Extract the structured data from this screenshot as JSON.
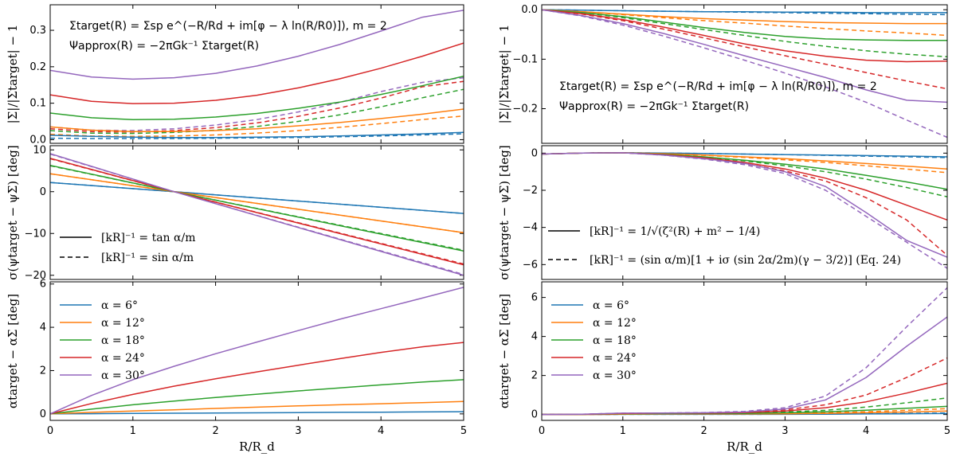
{
  "chart_data": {
    "type": "line",
    "xlabel": "R/R_d",
    "xlim": [
      0,
      5
    ],
    "xticks": [
      0,
      1,
      2,
      3,
      4,
      5
    ],
    "series_names": [
      "α = 6°",
      "α = 12°",
      "α = 18°",
      "α = 24°",
      "α = 30°"
    ],
    "colors": [
      "#1f77b4",
      "#ff7f0e",
      "#2ca02c",
      "#d62728",
      "#9467bd"
    ],
    "columns": [
      {
        "annotation": {
          "line1": "Σtarget(R) = Σsp e^(−R/Rd + im[φ − λ ln(R/R0)]),  m = 2",
          "line2": "Ψapprox(R) = −2πGk⁻¹ Σtarget(R)"
        },
        "style_legend": {
          "solid": "[kR]⁻¹ = tan α/m",
          "dashed": "[kR]⁻¹ = sin α/m"
        },
        "panels": [
          {
            "ylabel": "|Σ|/|Σtarget| − 1",
            "ylim": [
              -0.01,
              0.37
            ],
            "yticks": [
              "0.0",
              "0.1",
              "0.2",
              "0.3"
            ],
            "ytick_values": [
              0,
              0.1,
              0.2,
              0.3
            ],
            "x": [
              0,
              0.5,
              1,
              1.5,
              2,
              2.5,
              3,
              3.5,
              4,
              4.5,
              5
            ],
            "solid": [
              [
                0.012,
                0.009,
                0.007,
                0.006,
                0.006,
                0.007,
                0.008,
                0.01,
                0.013,
                0.016,
                0.02
              ],
              [
                0.035,
                0.026,
                0.022,
                0.022,
                0.025,
                0.03,
                0.038,
                0.047,
                0.058,
                0.07,
                0.084
              ],
              [
                0.073,
                0.06,
                0.055,
                0.056,
                0.062,
                0.072,
                0.086,
                0.103,
                0.124,
                0.148,
                0.174
              ],
              [
                0.123,
                0.105,
                0.099,
                0.1,
                0.108,
                0.122,
                0.142,
                0.167,
                0.196,
                0.229,
                0.265
              ],
              [
                0.19,
                0.172,
                0.166,
                0.17,
                0.182,
                0.202,
                0.229,
                0.261,
                0.298,
                0.336,
                0.355
              ]
            ],
            "dashed": [
              [
                0.004,
                0.003,
                0.003,
                0.003,
                0.004,
                0.005,
                0.006,
                0.008,
                0.01,
                0.013,
                0.016
              ],
              [
                0.015,
                0.01,
                0.009,
                0.01,
                0.013,
                0.018,
                0.025,
                0.034,
                0.044,
                0.055,
                0.065
              ],
              [
                0.025,
                0.018,
                0.017,
                0.02,
                0.026,
                0.036,
                0.05,
                0.068,
                0.09,
                0.115,
                0.138
              ],
              [
                0.03,
                0.022,
                0.021,
                0.025,
                0.033,
                0.046,
                0.064,
                0.087,
                0.114,
                0.145,
                0.16
              ],
              [
                0.035,
                0.026,
                0.025,
                0.03,
                0.04,
                0.055,
                0.076,
                0.102,
                0.132,
                0.157,
                0.17
              ]
            ]
          },
          {
            "ylabel": "σ(ψtarget − ψΣ) [deg]",
            "ylim": [
              -21,
              11
            ],
            "yticks": [
              "−20",
              "−10",
              "0",
              "10"
            ],
            "ytick_values": [
              -20,
              -10,
              0,
              10
            ],
            "x": [
              0,
              1.5,
              5
            ],
            "solid": [
              [
                2.2,
                0.0,
                -5.2
              ],
              [
                4.3,
                0.0,
                -9.8
              ],
              [
                6.3,
                0.0,
                -14.2
              ],
              [
                8.0,
                0.0,
                -17.5
              ],
              [
                9.1,
                0.0,
                -20.0
              ]
            ],
            "dashed": [
              [
                2.2,
                0.0,
                -5.2
              ],
              [
                4.3,
                0.0,
                -9.8
              ],
              [
                6.2,
                0.0,
                -14.0
              ],
              [
                7.9,
                0.0,
                -17.3
              ],
              [
                9.0,
                0.0,
                -19.8
              ]
            ]
          },
          {
            "ylabel": "αtarget − αΣ [deg]",
            "ylim": [
              -0.3,
              6.1
            ],
            "yticks": [
              "0",
              "2",
              "4",
              "6"
            ],
            "ytick_values": [
              0,
              2,
              4,
              6
            ],
            "x": [
              0,
              0.5,
              1,
              1.5,
              2,
              2.5,
              3,
              3.5,
              4,
              4.5,
              5
            ],
            "solid": [
              [
                0.0,
                0.01,
                0.02,
                0.03,
                0.04,
                0.05,
                0.06,
                0.07,
                0.08,
                0.09,
                0.1
              ],
              [
                0.0,
                0.07,
                0.13,
                0.19,
                0.25,
                0.31,
                0.37,
                0.42,
                0.47,
                0.52,
                0.57
              ],
              [
                0.0,
                0.22,
                0.42,
                0.59,
                0.76,
                0.91,
                1.06,
                1.2,
                1.34,
                1.47,
                1.58
              ],
              [
                0.0,
                0.48,
                0.9,
                1.28,
                1.62,
                1.94,
                2.25,
                2.55,
                2.84,
                3.1,
                3.3
              ],
              [
                0.0,
                0.85,
                1.58,
                2.2,
                2.78,
                3.32,
                3.85,
                4.37,
                4.86,
                5.35,
                5.85
              ]
            ]
          }
        ]
      },
      {
        "annotation": {
          "line1": "Σtarget(R) = Σsp e^(−R/Rd + im[φ − λ ln(R/R0)]),  m = 2",
          "line2": "Ψapprox(R) = −2πGk⁻¹ Σtarget(R)"
        },
        "style_legend": {
          "solid": "[kR]⁻¹ = 1/√(ζ²(R) + m² − 1/4)",
          "dashed": "[kR]⁻¹ = (sin α/m)[1 + iσ (sin 2α/2m)(γ − 3/2)] (Eq. 24)"
        },
        "panels": [
          {
            "ylabel": "|Σ|/|Σtarget| − 1",
            "ylim": [
              -0.27,
              0.01
            ],
            "yticks": [
              "0.0",
              "−0.1",
              "−0.2"
            ],
            "ytick_values": [
              0,
              -0.1,
              -0.2
            ],
            "x": [
              0,
              0.5,
              1,
              1.5,
              2,
              2.5,
              3,
              3.5,
              4,
              4.5,
              5
            ],
            "solid": [
              [
                0.0,
                -0.001,
                -0.002,
                -0.003,
                -0.004,
                -0.004,
                -0.005,
                -0.005,
                -0.006,
                -0.006,
                -0.006
              ],
              [
                0.0,
                -0.004,
                -0.009,
                -0.014,
                -0.018,
                -0.021,
                -0.024,
                -0.026,
                -0.027,
                -0.028,
                -0.028
              ],
              [
                0.0,
                -0.006,
                -0.014,
                -0.025,
                -0.036,
                -0.046,
                -0.054,
                -0.059,
                -0.061,
                -0.062,
                -0.062
              ],
              [
                0.0,
                -0.008,
                -0.02,
                -0.035,
                -0.052,
                -0.069,
                -0.083,
                -0.094,
                -0.102,
                -0.105,
                -0.104
              ],
              [
                0.0,
                -0.012,
                -0.028,
                -0.048,
                -0.07,
                -0.093,
                -0.115,
                -0.137,
                -0.162,
                -0.183,
                -0.187
              ]
            ],
            "dashed": [
              [
                0.0,
                -0.001,
                -0.002,
                -0.003,
                -0.004,
                -0.005,
                -0.006,
                -0.007,
                -0.008,
                -0.009,
                -0.01
              ],
              [
                0.0,
                -0.004,
                -0.01,
                -0.016,
                -0.022,
                -0.027,
                -0.033,
                -0.038,
                -0.043,
                -0.047,
                -0.052
              ],
              [
                0.0,
                -0.006,
                -0.016,
                -0.028,
                -0.04,
                -0.052,
                -0.064,
                -0.074,
                -0.083,
                -0.09,
                -0.095
              ],
              [
                0.0,
                -0.009,
                -0.022,
                -0.039,
                -0.057,
                -0.075,
                -0.093,
                -0.11,
                -0.127,
                -0.144,
                -0.16
              ],
              [
                0.0,
                -0.013,
                -0.031,
                -0.053,
                -0.077,
                -0.102,
                -0.128,
                -0.156,
                -0.187,
                -0.223,
                -0.258
              ]
            ]
          },
          {
            "ylabel": "σ(ψtarget − ψΣ) [deg]",
            "ylim": [
              -6.8,
              0.4
            ],
            "yticks": [
              "0",
              "−2",
              "−4",
              "−6"
            ],
            "ytick_values": [
              0,
              -2,
              -4,
              -6
            ],
            "x": [
              0,
              0.5,
              1,
              1.5,
              2,
              2.5,
              3,
              3.5,
              4,
              4.5,
              5
            ],
            "solid": [
              [
                -0.05,
                0.0,
                0.02,
                0.0,
                -0.02,
                -0.05,
                -0.08,
                -0.1,
                -0.13,
                -0.16,
                -0.2
              ],
              [
                -0.05,
                0.0,
                0.02,
                -0.03,
                -0.1,
                -0.2,
                -0.3,
                -0.42,
                -0.56,
                -0.7,
                -0.85
              ],
              [
                -0.05,
                0.0,
                0.02,
                -0.06,
                -0.2,
                -0.38,
                -0.6,
                -0.85,
                -1.2,
                -1.55,
                -1.95
              ],
              [
                -0.05,
                0.0,
                0.02,
                -0.08,
                -0.25,
                -0.5,
                -0.85,
                -1.35,
                -2.0,
                -2.8,
                -3.6
              ],
              [
                -0.05,
                0.0,
                0.02,
                -0.1,
                -0.3,
                -0.55,
                -1.0,
                -1.8,
                -3.2,
                -4.7,
                -5.6
              ]
            ],
            "dashed": [
              [
                -0.05,
                0.0,
                0.02,
                0.0,
                -0.02,
                -0.05,
                -0.08,
                -0.12,
                -0.16,
                -0.2,
                -0.24
              ],
              [
                -0.05,
                0.0,
                0.02,
                -0.04,
                -0.12,
                -0.23,
                -0.36,
                -0.5,
                -0.68,
                -0.86,
                -1.05
              ],
              [
                -0.05,
                0.0,
                0.02,
                -0.07,
                -0.22,
                -0.42,
                -0.68,
                -1.0,
                -1.4,
                -1.85,
                -2.35
              ],
              [
                -0.05,
                0.0,
                0.02,
                -0.09,
                -0.28,
                -0.56,
                -0.96,
                -1.5,
                -2.4,
                -3.6,
                -5.5
              ],
              [
                -0.05,
                0.0,
                0.02,
                -0.11,
                -0.32,
                -0.62,
                -1.1,
                -2.0,
                -3.4,
                -4.8,
                -6.2
              ]
            ]
          },
          {
            "ylabel": "αtarget − αΣ [deg]",
            "ylim": [
              -0.3,
              6.8
            ],
            "yticks": [
              "0",
              "2",
              "4",
              "6"
            ],
            "ytick_values": [
              0,
              2,
              4,
              6
            ],
            "x": [
              0,
              0.5,
              1,
              1.5,
              2,
              2.5,
              3,
              3.5,
              4,
              4.5,
              5
            ],
            "solid": [
              [
                0.0,
                0.0,
                0.01,
                0.01,
                0.01,
                0.01,
                0.01,
                0.02,
                0.03,
                0.04,
                0.05
              ],
              [
                0.0,
                0.0,
                0.02,
                0.03,
                0.03,
                0.03,
                0.04,
                0.06,
                0.09,
                0.13,
                0.18
              ],
              [
                0.0,
                0.01,
                0.04,
                0.05,
                0.05,
                0.06,
                0.09,
                0.14,
                0.22,
                0.32,
                0.42
              ],
              [
                0.0,
                0.01,
                0.05,
                0.07,
                0.07,
                0.1,
                0.18,
                0.35,
                0.65,
                1.1,
                1.6
              ],
              [
                0.0,
                0.02,
                0.07,
                0.08,
                0.09,
                0.13,
                0.28,
                0.75,
                1.9,
                3.5,
                5.0
              ]
            ],
            "dashed": [
              [
                0.0,
                0.0,
                0.01,
                0.01,
                0.01,
                0.01,
                0.02,
                0.03,
                0.04,
                0.06,
                0.08
              ],
              [
                0.0,
                0.0,
                0.02,
                0.03,
                0.03,
                0.04,
                0.06,
                0.09,
                0.14,
                0.22,
                0.3
              ],
              [
                0.0,
                0.01,
                0.04,
                0.05,
                0.06,
                0.08,
                0.13,
                0.22,
                0.38,
                0.6,
                0.85
              ],
              [
                0.0,
                0.01,
                0.05,
                0.07,
                0.08,
                0.12,
                0.24,
                0.5,
                1.0,
                1.9,
                2.9
              ],
              [
                0.0,
                0.02,
                0.07,
                0.08,
                0.1,
                0.16,
                0.35,
                0.95,
                2.4,
                4.5,
                6.5
              ]
            ]
          }
        ]
      }
    ]
  }
}
